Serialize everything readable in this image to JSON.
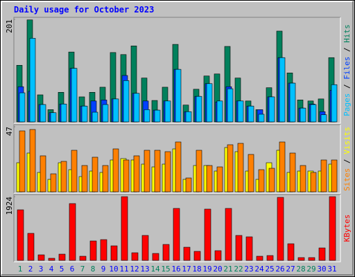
{
  "title": "Daily usage for October 2023",
  "chart_data": [
    {
      "type": "bar",
      "ylim": [
        0,
        201
      ],
      "yticks": [
        201
      ],
      "legend_separator": " / ",
      "series": [
        {
          "name": "Hits",
          "color": "#00805c",
          "values": [
            111,
            200,
            53,
            24,
            58,
            137,
            49,
            58,
            68,
            136,
            132,
            149,
            86,
            42,
            68,
            152,
            33,
            64,
            90,
            94,
            148,
            86,
            41,
            24,
            67,
            178,
            96,
            43,
            41,
            45,
            126
          ]
        },
        {
          "name": "Files",
          "color": "#0040ff",
          "values": [
            69,
            60,
            34,
            18,
            35,
            105,
            31,
            41,
            43,
            45,
            91,
            56,
            41,
            23,
            41,
            103,
            20,
            50,
            75,
            39,
            69,
            41,
            31,
            24,
            49,
            126,
            76,
            27,
            35,
            20,
            62
          ]
        },
        {
          "name": "Pages",
          "color": "#00c0ff",
          "values": [
            57,
            164,
            34,
            18,
            35,
            105,
            31,
            19,
            34,
            45,
            81,
            56,
            24,
            23,
            41,
            103,
            20,
            50,
            75,
            41,
            65,
            41,
            31,
            15,
            49,
            126,
            76,
            27,
            34,
            14,
            73
          ]
        }
      ]
    },
    {
      "type": "bar",
      "ylim": [
        0,
        47
      ],
      "yticks": [
        47
      ],
      "legend_separator": " / ",
      "series": [
        {
          "name": "Visits",
          "color": "#ffff00",
          "values": [
            21,
            28,
            14,
            9,
            21,
            16,
            11,
            15,
            14,
            23,
            24,
            23,
            20,
            18,
            20,
            31,
            9,
            19,
            19,
            15,
            32,
            29,
            15,
            9,
            21,
            30,
            14,
            15,
            15,
            15,
            20
          ]
        },
        {
          "name": "Sites",
          "color": "#ff8000",
          "values": [
            44,
            45,
            26,
            13,
            22,
            30,
            19,
            25,
            19,
            31,
            23,
            26,
            30,
            30,
            29,
            36,
            10,
            30,
            19,
            18,
            34,
            35,
            27,
            16,
            17,
            36,
            28,
            19,
            14,
            23,
            23
          ]
        }
      ]
    },
    {
      "type": "bar",
      "ylim": [
        0,
        1924
      ],
      "yticks": [
        1924
      ],
      "categories": [
        "1",
        "2",
        "3",
        "4",
        "5",
        "6",
        "7",
        "8",
        "9",
        "10",
        "11",
        "12",
        "13",
        "14",
        "15",
        "16",
        "17",
        "18",
        "19",
        "20",
        "21",
        "22",
        "23",
        "24",
        "25",
        "26",
        "27",
        "28",
        "29",
        "30",
        "31"
      ],
      "category_colors": [
        "#00805c",
        "#0000ff",
        "#0000ff",
        "#0000ff",
        "#0000ff",
        "#0000ff",
        "#00805c",
        "#00805c",
        "#0000ff",
        "#0000ff",
        "#0000ff",
        "#0000ff",
        "#0000ff",
        "#00805c",
        "#00805c",
        "#0000ff",
        "#0000ff",
        "#0000ff",
        "#0000ff",
        "#0000ff",
        "#00805c",
        "#00805c",
        "#0000ff",
        "#0000ff",
        "#0000ff",
        "#0000ff",
        "#0000ff",
        "#00805c",
        "#00805c",
        "#0000ff",
        "#0000ff"
      ],
      "series": [
        {
          "name": "KBytes",
          "color": "#ff0000",
          "values": [
            1527,
            816,
            167,
            63,
            188,
            1715,
            125,
            586,
            627,
            439,
            1924,
            230,
            753,
            209,
            481,
            1569,
            397,
            272,
            1548,
            293,
            1569,
            753,
            711,
            125,
            146,
            1903,
            502,
            84,
            84,
            376,
            1924
          ]
        }
      ]
    }
  ]
}
